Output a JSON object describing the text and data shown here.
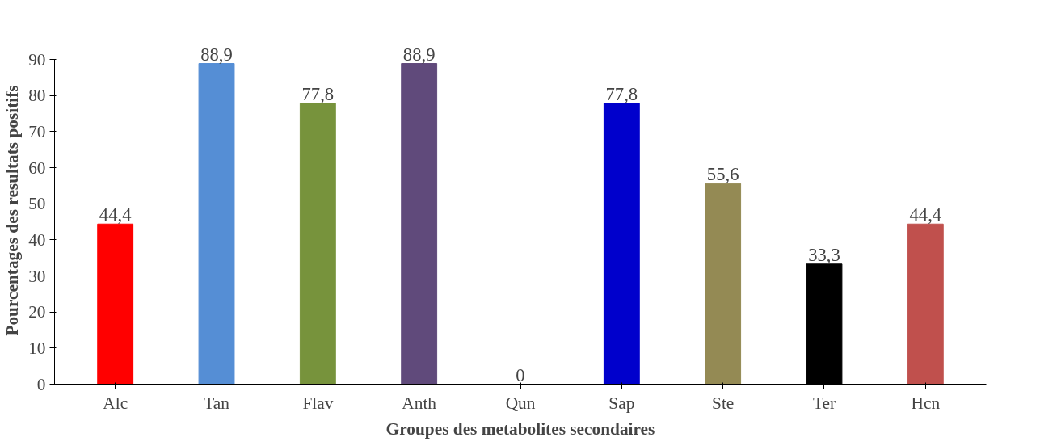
{
  "chart_data": {
    "type": "bar",
    "xlabel": "Groupes des metabolites secondaires",
    "ylabel": "Pourcentages des resultats positifs",
    "categories": [
      "Alc",
      "Tan",
      "Flav",
      "Anth",
      "Qun",
      "Sap",
      "Ste",
      "Ter",
      "Hcn"
    ],
    "values": [
      44.4,
      88.9,
      77.8,
      88.9,
      0,
      77.8,
      55.6,
      33.3,
      44.4
    ],
    "value_labels": [
      "44,4",
      "88,9",
      "77,8",
      "88,9",
      "0",
      "77,8",
      "55,6",
      "33,3",
      "44,4"
    ],
    "colors": [
      "#ff0000",
      "#558ed5",
      "#77933c",
      "#604a7b",
      "#c0504d",
      "#0000cc",
      "#948a54",
      "#000000",
      "#c0504d"
    ],
    "ylim": [
      0,
      90
    ],
    "yticks": [
      0,
      10,
      20,
      30,
      40,
      50,
      60,
      70,
      80,
      90
    ],
    "grid": false
  }
}
